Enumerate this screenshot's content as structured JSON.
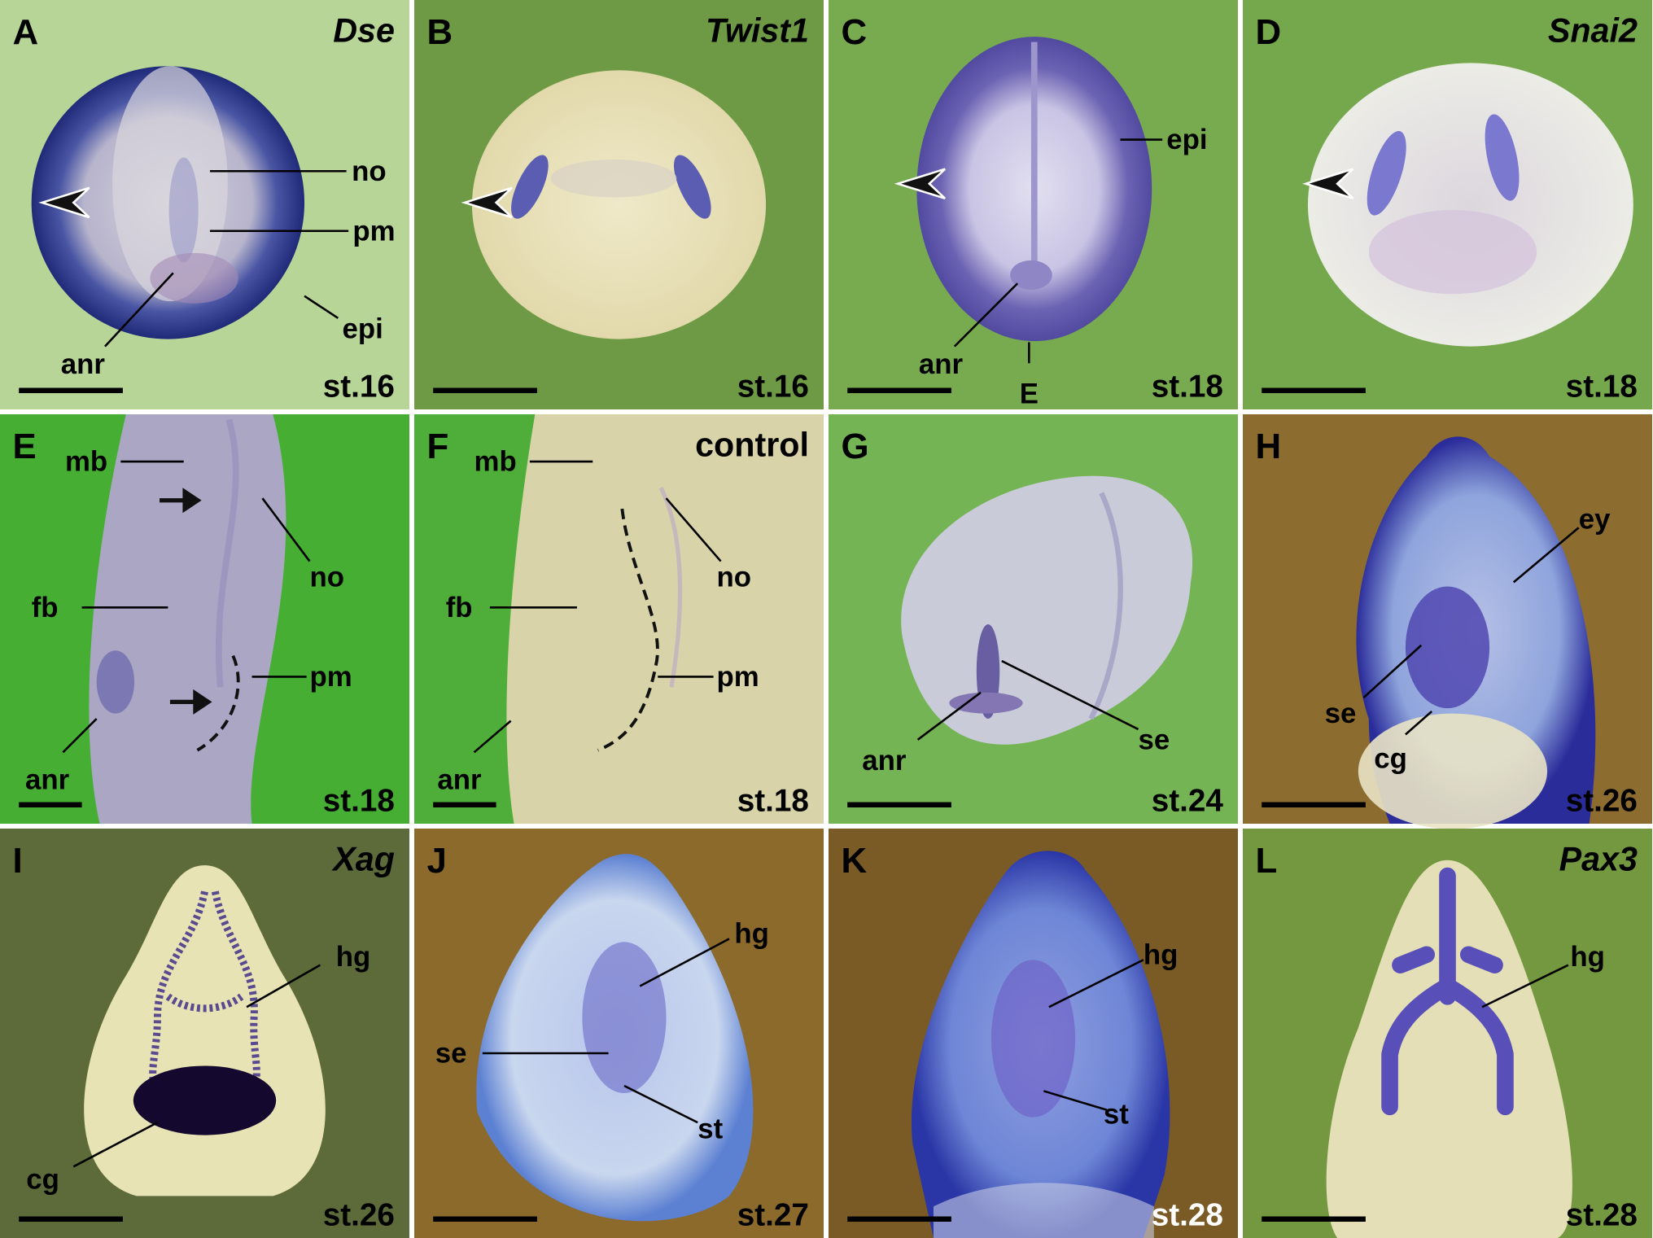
{
  "panels": [
    {
      "letter": "A",
      "gene": "Dse",
      "stage": "st.16",
      "labels": [
        "no",
        "pm",
        "epi",
        "anr"
      ]
    },
    {
      "letter": "B",
      "gene": "Twist1",
      "stage": "st.16",
      "labels": []
    },
    {
      "letter": "C",
      "stage": "st.18",
      "labels": [
        "epi",
        "anr",
        "E"
      ]
    },
    {
      "letter": "D",
      "gene": "Snai2",
      "stage": "st.18",
      "labels": []
    },
    {
      "letter": "E",
      "stage": "st.18",
      "labels": [
        "mb",
        "no",
        "fb",
        "pm",
        "anr"
      ]
    },
    {
      "letter": "F",
      "gene": "control",
      "stage": "st.18",
      "labels": [
        "mb",
        "no",
        "fb",
        "pm",
        "anr"
      ]
    },
    {
      "letter": "G",
      "stage": "st.24",
      "labels": [
        "anr",
        "se"
      ]
    },
    {
      "letter": "H",
      "stage": "st.26",
      "labels": [
        "ey",
        "se",
        "cg"
      ]
    },
    {
      "letter": "I",
      "gene": "Xag",
      "stage": "st.26",
      "labels": [
        "hg",
        "cg"
      ]
    },
    {
      "letter": "J",
      "stage": "st.27",
      "labels": [
        "hg",
        "se",
        "st"
      ]
    },
    {
      "letter": "K",
      "stage": "st.28",
      "labels": [
        "hg",
        "st"
      ]
    },
    {
      "letter": "L",
      "gene": "Pax3",
      "stage": "st.28",
      "labels": [
        "hg"
      ]
    }
  ]
}
